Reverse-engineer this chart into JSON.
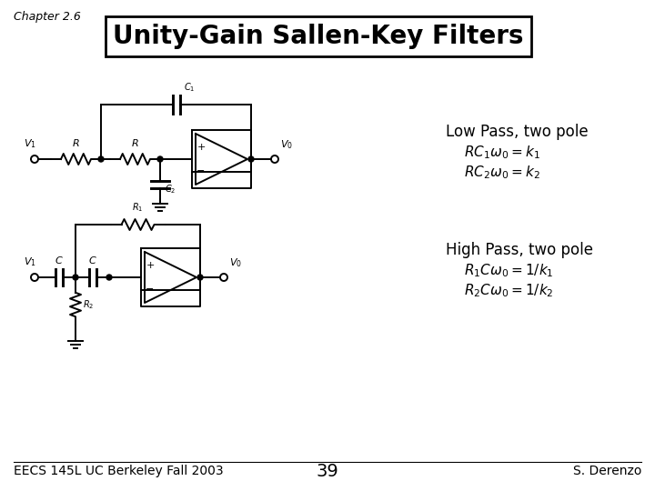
{
  "title": "Unity-Gain Sallen-Key Filters",
  "chapter": "Chapter 2.6",
  "footer_left": "EECS 145L UC Berkeley Fall 2003",
  "footer_center": "39",
  "footer_right": "S. Derenzo",
  "lp_label": "Low Pass, two pole",
  "lp_eq1": "$RC_1\\omega_0 = k_1$",
  "lp_eq2": "$RC_2\\omega_0 = k_2$",
  "hp_label": "High Pass, two pole",
  "hp_eq1": "$R_1C\\omega_0 = 1/k_1$",
  "hp_eq2": "$R_2C\\omega_0 = 1/k_2$",
  "bg_color": "#ffffff",
  "line_color": "#000000",
  "title_fontsize": 20,
  "label_fontsize": 12,
  "eq_fontsize": 11,
  "footer_fontsize": 10,
  "chapter_fontsize": 9
}
